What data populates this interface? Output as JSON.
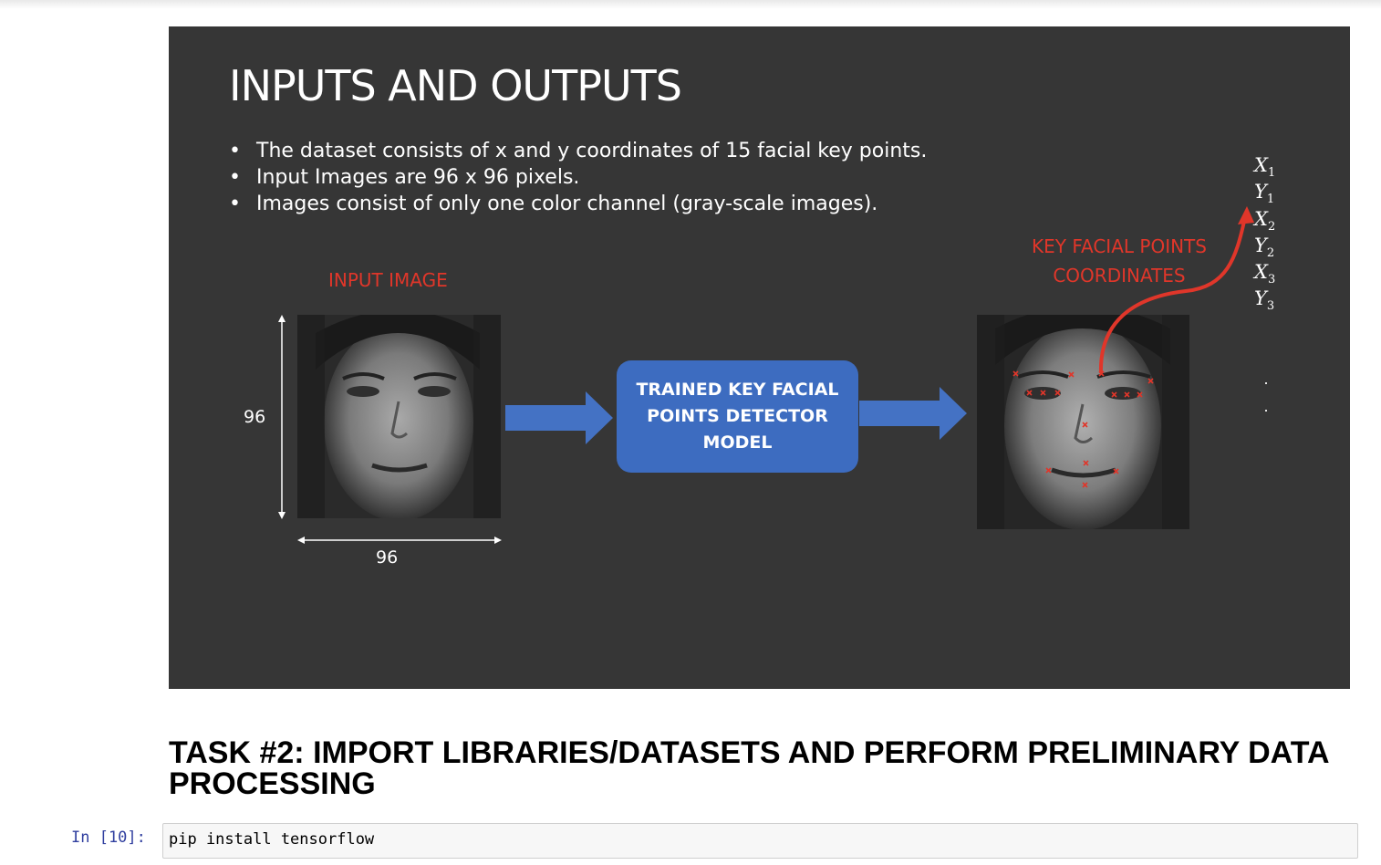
{
  "slide": {
    "title": "INPUTS AND OUTPUTS",
    "bullets": [
      "The dataset consists of x and y coordinates of 15 facial key points.",
      "Input Images are 96 x 96 pixels.",
      "Images consist of only one color channel (gray-scale images)."
    ],
    "input_label": "INPUT IMAGE",
    "output_label_line1": "KEY FACIAL POINTS",
    "output_label_line2": "COORDINATES",
    "height_dim": "96",
    "width_dim": "96",
    "model_line1": "TRAINED KEY FACIAL",
    "model_line2": "POINTS DETECTOR",
    "model_line3": "MODEL",
    "coords": [
      {
        "letter": "X",
        "sub": "1"
      },
      {
        "letter": "Y",
        "sub": "1"
      },
      {
        "letter": "X",
        "sub": "2"
      },
      {
        "letter": "Y",
        "sub": "2"
      },
      {
        "letter": "X",
        "sub": "3"
      },
      {
        "letter": "Y",
        "sub": "3"
      }
    ],
    "dots": [
      "·",
      "·"
    ],
    "colors": {
      "background": "#363636",
      "accent_red": "#e0362a",
      "model_blue": "#3d6cc0",
      "arrow_blue": "#4472c4"
    }
  },
  "task_heading": "TASK #2: IMPORT LIBRARIES/DATASETS AND PERFORM PRELIMINARY DATA PROCESSING",
  "code_cell": {
    "prompt": "In [10]:",
    "source": "pip install tensorflow"
  }
}
